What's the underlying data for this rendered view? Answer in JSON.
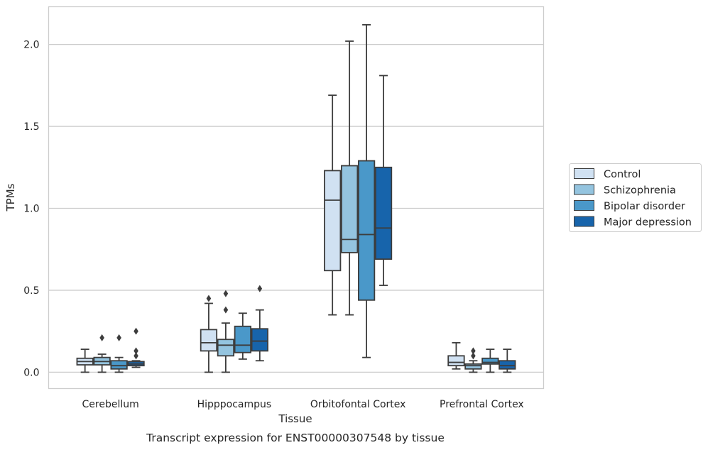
{
  "chart_data": {
    "type": "box",
    "caption": "Transcript expression for ENST00000307548 by tissue",
    "xlabel": "Tissue",
    "ylabel": "TPMs",
    "ylim": [
      -0.1,
      2.23
    ],
    "yticks": [
      0.0,
      0.5,
      1.0,
      1.5,
      2.0
    ],
    "ytick_labels": [
      "0.0",
      "0.5",
      "1.0",
      "1.5",
      "2.0"
    ],
    "grid": "horizontal",
    "legend_position": "right",
    "categories": [
      "Cerebellum",
      "Hipppocampus",
      "Orbitofontal Cortex",
      "Prefrontal Cortex"
    ],
    "series": [
      {
        "name": "Control",
        "color": "#d0e1f2",
        "boxes": [
          {
            "whislo": 0.0,
            "q1": 0.045,
            "med": 0.065,
            "q3": 0.085,
            "whishi": 0.14,
            "fliers": []
          },
          {
            "whislo": 0.0,
            "q1": 0.13,
            "med": 0.18,
            "q3": 0.26,
            "whishi": 0.42,
            "fliers": [
              0.45
            ]
          },
          {
            "whislo": 0.35,
            "q1": 0.62,
            "med": 1.05,
            "q3": 1.23,
            "whishi": 1.69,
            "fliers": []
          },
          {
            "whislo": 0.02,
            "q1": 0.04,
            "med": 0.06,
            "q3": 0.1,
            "whishi": 0.18,
            "fliers": []
          }
        ]
      },
      {
        "name": "Schizophrenia",
        "color": "#94c4df",
        "boxes": [
          {
            "whislo": 0.0,
            "q1": 0.045,
            "med": 0.065,
            "q3": 0.09,
            "whishi": 0.11,
            "fliers": [
              0.21
            ]
          },
          {
            "whislo": 0.0,
            "q1": 0.1,
            "med": 0.165,
            "q3": 0.2,
            "whishi": 0.3,
            "fliers": [
              0.38,
              0.48
            ]
          },
          {
            "whislo": 0.35,
            "q1": 0.73,
            "med": 0.81,
            "q3": 1.26,
            "whishi": 2.02,
            "fliers": []
          },
          {
            "whislo": 0.0,
            "q1": 0.02,
            "med": 0.04,
            "q3": 0.05,
            "whishi": 0.07,
            "fliers": [
              0.1,
              0.13
            ]
          }
        ]
      },
      {
        "name": "Bipolar disorder",
        "color": "#4a98c9",
        "boxes": [
          {
            "whislo": 0.0,
            "q1": 0.02,
            "med": 0.04,
            "q3": 0.07,
            "whishi": 0.09,
            "fliers": [
              0.21
            ]
          },
          {
            "whislo": 0.08,
            "q1": 0.12,
            "med": 0.165,
            "q3": 0.28,
            "whishi": 0.36,
            "fliers": []
          },
          {
            "whislo": 0.09,
            "q1": 0.44,
            "med": 0.84,
            "q3": 1.29,
            "whishi": 2.12,
            "fliers": []
          },
          {
            "whislo": 0.0,
            "q1": 0.05,
            "med": 0.06,
            "q3": 0.085,
            "whishi": 0.14,
            "fliers": []
          }
        ]
      },
      {
        "name": "Major depression",
        "color": "#1764ab",
        "boxes": [
          {
            "whislo": 0.03,
            "q1": 0.04,
            "med": 0.05,
            "q3": 0.065,
            "whishi": 0.07,
            "fliers": [
              0.1,
              0.13,
              0.25
            ]
          },
          {
            "whislo": 0.07,
            "q1": 0.13,
            "med": 0.19,
            "q3": 0.265,
            "whishi": 0.38,
            "fliers": [
              0.51
            ]
          },
          {
            "whislo": 0.53,
            "q1": 0.69,
            "med": 0.88,
            "q3": 1.25,
            "whishi": 1.81,
            "fliers": []
          },
          {
            "whislo": 0.0,
            "q1": 0.02,
            "med": 0.04,
            "q3": 0.07,
            "whishi": 0.14,
            "fliers": []
          }
        ]
      }
    ]
  }
}
